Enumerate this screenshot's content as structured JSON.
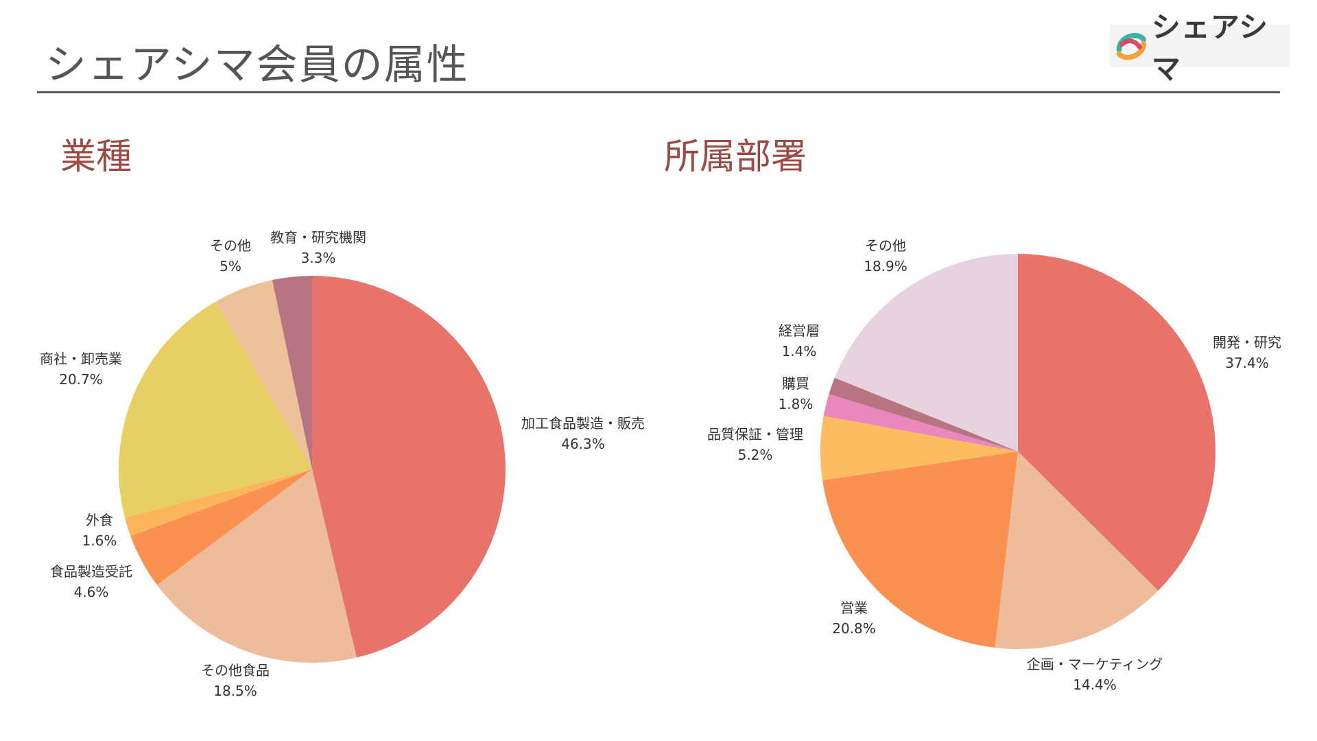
{
  "page": {
    "title": "シェアシマ会員の属性",
    "logo_text": "シェアシマ"
  },
  "colors": {
    "title": "#555555",
    "chart_title": "#9b4a44",
    "rule": "#595959"
  },
  "chart_data": [
    {
      "type": "pie",
      "title": "業種",
      "unit": "%",
      "start": "12 o'clock",
      "direction": "clockwise",
      "slices": [
        {
          "label": "加工食品製造・販売",
          "value": 46.3,
          "color": "#e8736b"
        },
        {
          "label": "その他食品",
          "value": 18.5,
          "color": "#eebb9b"
        },
        {
          "label": "食品製造受託",
          "value": 4.6,
          "color": "#fb9150"
        },
        {
          "label": "外食",
          "value": 1.6,
          "color": "#fcb65a"
        },
        {
          "label": "商社・卸売業",
          "value": 20.7,
          "color": "#e8cf63"
        },
        {
          "label": "その他",
          "value": 5,
          "color": "#ecc197"
        },
        {
          "label": "教育・研究機関",
          "value": 3.3,
          "color": "#b77583"
        }
      ]
    },
    {
      "type": "pie",
      "title": "所属部署",
      "unit": "%",
      "start": "12 o'clock",
      "direction": "clockwise",
      "slices": [
        {
          "label": "開発・研究",
          "value": 37.4,
          "color": "#e8736b"
        },
        {
          "label": "企画・マーケティング",
          "value": 14.4,
          "color": "#eebb9b"
        },
        {
          "label": "営業",
          "value": 20.8,
          "color": "#fb9150"
        },
        {
          "label": "品質保証・管理",
          "value": 5.2,
          "color": "#fcbb5e"
        },
        {
          "label": "購買",
          "value": 1.8,
          "color": "#e987be"
        },
        {
          "label": "経営層",
          "value": 1.4,
          "color": "#b77583"
        },
        {
          "label": "その他",
          "value": 18.9,
          "color": "#e7d3de"
        }
      ]
    }
  ]
}
